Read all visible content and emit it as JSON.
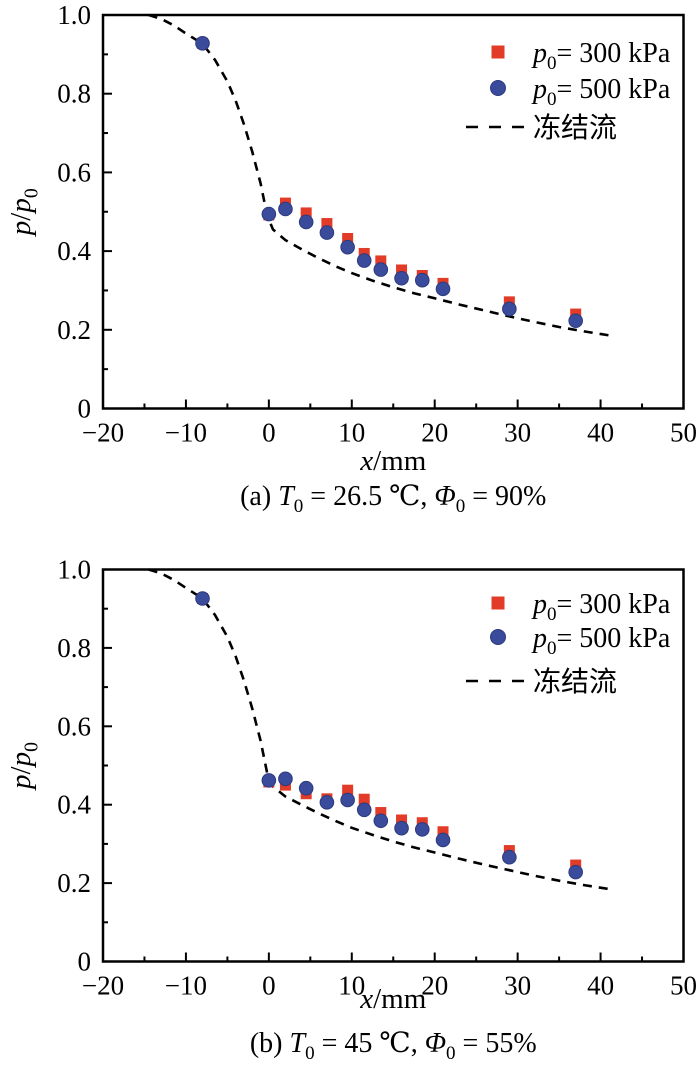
{
  "figure": {
    "colors": {
      "series_300_red": "#e23b27",
      "series_500_blue": "#3b4b9b",
      "frozen_flow_line": "#000000",
      "axis": "#000000",
      "background": "#ffffff"
    }
  },
  "chart_data": [
    {
      "id": "a",
      "type": "scatter",
      "caption": "(a) T0 = 26.5 ℃, Φ0 = 90%",
      "caption_parts": [
        {
          "t": "(a) "
        },
        {
          "t": "T",
          "i": true
        },
        {
          "t": "0",
          "sub": true
        },
        {
          "t": " = 26.5 ℃, "
        },
        {
          "t": "Φ",
          "i": true
        },
        {
          "t": "0",
          "sub": true
        },
        {
          "t": " = 90%"
        }
      ],
      "xlabel": "x/mm",
      "xlabel_parts": [
        {
          "t": "x",
          "i": true
        },
        {
          "t": "/mm"
        }
      ],
      "ylabel": "p/p0",
      "ylabel_parts": [
        {
          "t": "p",
          "i": true
        },
        {
          "t": "/"
        },
        {
          "t": "p",
          "i": true
        },
        {
          "t": "0",
          "sub": true
        }
      ],
      "xlim": [
        -20,
        50
      ],
      "ylim": [
        0,
        1.0
      ],
      "x_major_step": 10,
      "x_minor_step": 5,
      "y_major_step": 0.2,
      "y_minor_step": 0.1,
      "x_tick_labels": [
        "−20",
        "−10",
        "0",
        "10",
        "20",
        "30",
        "40",
        "50"
      ],
      "y_tick_labels": [
        "0",
        "0.2",
        "0.4",
        "0.6",
        "0.8",
        "1.0"
      ],
      "grid": false,
      "legend_position": "upper-right",
      "legend": [
        {
          "marker": "square",
          "color_key": "series_300_red",
          "label": "p0= 300 kPa",
          "label_parts": [
            {
              "t": "p",
              "i": true
            },
            {
              "t": "0",
              "sub": true
            },
            {
              "t": "= 300 kPa"
            }
          ]
        },
        {
          "marker": "circle",
          "color_key": "series_500_blue",
          "label": "p0= 500 kPa",
          "label_parts": [
            {
              "t": "p",
              "i": true
            },
            {
              "t": "0",
              "sub": true
            },
            {
              "t": "= 500 kPa"
            }
          ]
        },
        {
          "marker": "dash",
          "color_key": "frozen_flow_line",
          "label": "冻结流",
          "label_parts": [
            {
              "t": "冻结流"
            }
          ]
        }
      ],
      "series": [
        {
          "name": "冻结流",
          "type": "dashed-line",
          "color_key": "frozen_flow_line",
          "points": [
            [
              -14.5,
              1.0
            ],
            [
              -13,
              0.99
            ],
            [
              -11.5,
              0.974
            ],
            [
              -10,
              0.953
            ],
            [
              -8,
              0.927
            ],
            [
              -6.5,
              0.886
            ],
            [
              -5,
              0.831
            ],
            [
              -4,
              0.782
            ],
            [
              -3,
              0.722
            ],
            [
              -2,
              0.652
            ],
            [
              -1,
              0.572
            ],
            [
              -0.2,
              0.49
            ],
            [
              0.5,
              0.455
            ],
            [
              2,
              0.428
            ],
            [
              4,
              0.404
            ],
            [
              6,
              0.382
            ],
            [
              8,
              0.362
            ],
            [
              10,
              0.344
            ],
            [
              12.5,
              0.325
            ],
            [
              15,
              0.308
            ],
            [
              17.5,
              0.293
            ],
            [
              20,
              0.28
            ],
            [
              23,
              0.264
            ],
            [
              26,
              0.249
            ],
            [
              29,
              0.234
            ],
            [
              32,
              0.22
            ],
            [
              35,
              0.207
            ],
            [
              38,
              0.196
            ],
            [
              41,
              0.186
            ]
          ]
        },
        {
          "name": "p0 = 300 kPa",
          "type": "scatter",
          "marker": "square",
          "color_key": "series_300_red",
          "points": [
            [
              -8,
              0.928
            ],
            [
              0,
              0.492
            ],
            [
              2,
              0.522
            ],
            [
              4.5,
              0.497
            ],
            [
              7,
              0.47
            ],
            [
              9.5,
              0.432
            ],
            [
              11.5,
              0.394
            ],
            [
              13.5,
              0.375
            ],
            [
              16,
              0.352
            ],
            [
              18.5,
              0.338
            ],
            [
              21,
              0.318
            ],
            [
              29,
              0.271
            ],
            [
              37,
              0.24
            ]
          ]
        },
        {
          "name": "p0 = 500 kPa",
          "type": "scatter",
          "marker": "circle",
          "color_key": "series_500_blue",
          "points": [
            [
              -8,
              0.928
            ],
            [
              0,
              0.494
            ],
            [
              2,
              0.507
            ],
            [
              4.5,
              0.474
            ],
            [
              7,
              0.447
            ],
            [
              9.5,
              0.41
            ],
            [
              11.5,
              0.376
            ],
            [
              13.5,
              0.353
            ],
            [
              16,
              0.331
            ],
            [
              18.5,
              0.326
            ],
            [
              21,
              0.304
            ],
            [
              29,
              0.253
            ],
            [
              37,
              0.223
            ]
          ]
        }
      ]
    },
    {
      "id": "b",
      "type": "scatter",
      "caption": "(b) T0 = 45 ℃, Φ0 = 55%",
      "caption_parts": [
        {
          "t": "(b) "
        },
        {
          "t": "T",
          "i": true
        },
        {
          "t": "0",
          "sub": true
        },
        {
          "t": " = 45 ℃, "
        },
        {
          "t": "Φ",
          "i": true
        },
        {
          "t": "0",
          "sub": true
        },
        {
          "t": " = 55%"
        }
      ],
      "xlabel": "x/mm",
      "xlabel_parts": [
        {
          "t": "x",
          "i": true
        },
        {
          "t": "/mm"
        }
      ],
      "ylabel": "p/p0",
      "ylabel_parts": [
        {
          "t": "p",
          "i": true
        },
        {
          "t": "/"
        },
        {
          "t": "p",
          "i": true
        },
        {
          "t": "0",
          "sub": true
        }
      ],
      "xlim": [
        -20,
        50
      ],
      "ylim": [
        0,
        1.0
      ],
      "x_major_step": 10,
      "x_minor_step": 5,
      "y_major_step": 0.2,
      "y_minor_step": 0.1,
      "x_tick_labels": [
        "−20",
        "−10",
        "0",
        "10",
        "20",
        "30",
        "40",
        "50"
      ],
      "y_tick_labels": [
        "0",
        "0.2",
        "0.4",
        "0.6",
        "0.8",
        "1.0"
      ],
      "grid": false,
      "legend_position": "upper-right",
      "legend": [
        {
          "marker": "square",
          "color_key": "series_300_red",
          "label": "p0= 300 kPa",
          "label_parts": [
            {
              "t": "p",
              "i": true
            },
            {
              "t": "0",
              "sub": true
            },
            {
              "t": "= 300 kPa"
            }
          ]
        },
        {
          "marker": "circle",
          "color_key": "series_500_blue",
          "label": "p0= 500 kPa",
          "label_parts": [
            {
              "t": "p",
              "i": true
            },
            {
              "t": "0",
              "sub": true
            },
            {
              "t": "= 500 kPa"
            }
          ]
        },
        {
          "marker": "dash",
          "color_key": "frozen_flow_line",
          "label": "冻结流",
          "label_parts": [
            {
              "t": "冻结流"
            }
          ]
        }
      ],
      "series": [
        {
          "name": "冻结流",
          "type": "dashed-line",
          "color_key": "frozen_flow_line",
          "points": [
            [
              -14.5,
              1.0
            ],
            [
              -13,
              0.99
            ],
            [
              -11.5,
              0.974
            ],
            [
              -10,
              0.953
            ],
            [
              -8,
              0.926
            ],
            [
              -6.5,
              0.884
            ],
            [
              -5,
              0.828
            ],
            [
              -4,
              0.778
            ],
            [
              -3,
              0.716
            ],
            [
              -2,
              0.645
            ],
            [
              -1,
              0.563
            ],
            [
              -0.2,
              0.48
            ],
            [
              0.5,
              0.446
            ],
            [
              2,
              0.421
            ],
            [
              4,
              0.399
            ],
            [
              6,
              0.378
            ],
            [
              8,
              0.359
            ],
            [
              10,
              0.341
            ],
            [
              12.5,
              0.323
            ],
            [
              15,
              0.306
            ],
            [
              17.5,
              0.291
            ],
            [
              20,
              0.278
            ],
            [
              23,
              0.262
            ],
            [
              26,
              0.247
            ],
            [
              29,
              0.233
            ],
            [
              32,
              0.219
            ],
            [
              35,
              0.206
            ],
            [
              38,
              0.195
            ],
            [
              41,
              0.185
            ]
          ]
        },
        {
          "name": "p0 = 300 kPa",
          "type": "scatter",
          "marker": "square",
          "color_key": "series_300_red",
          "points": [
            [
              -8,
              0.926
            ],
            [
              0,
              0.458
            ],
            [
              2,
              0.45
            ],
            [
              4.5,
              0.428
            ],
            [
              7,
              0.415
            ],
            [
              9.5,
              0.437
            ],
            [
              11.5,
              0.414
            ],
            [
              13.5,
              0.38
            ],
            [
              16,
              0.361
            ],
            [
              18.5,
              0.354
            ],
            [
              21,
              0.331
            ],
            [
              29,
              0.283
            ],
            [
              37,
              0.246
            ]
          ]
        },
        {
          "name": "p0 = 500 kPa",
          "type": "scatter",
          "marker": "circle",
          "color_key": "series_500_blue",
          "points": [
            [
              -8,
              0.926
            ],
            [
              0,
              0.462
            ],
            [
              2,
              0.466
            ],
            [
              4.5,
              0.442
            ],
            [
              7,
              0.406
            ],
            [
              9.5,
              0.412
            ],
            [
              11.5,
              0.387
            ],
            [
              13.5,
              0.359
            ],
            [
              16,
              0.34
            ],
            [
              18.5,
              0.337
            ],
            [
              21,
              0.31
            ],
            [
              29,
              0.266
            ],
            [
              37,
              0.228
            ]
          ]
        }
      ]
    }
  ]
}
